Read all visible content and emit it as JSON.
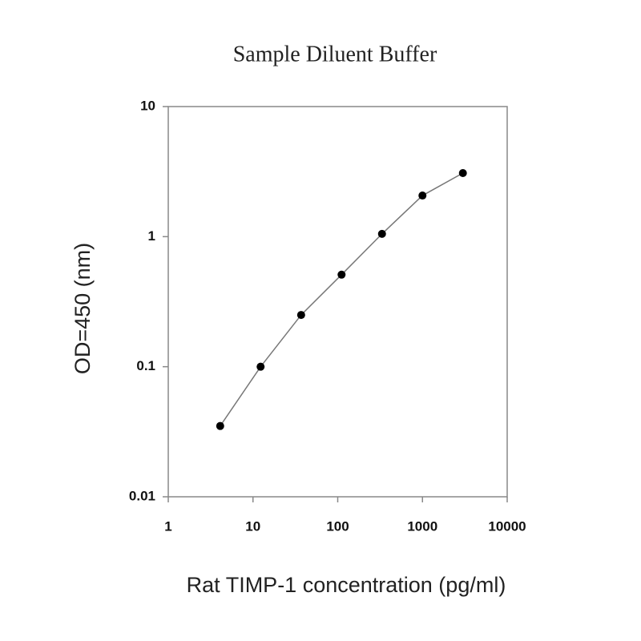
{
  "chart_data": {
    "type": "scatter",
    "title": "Sample Diluent Buffer",
    "x_label": "Rat TIMP-1 concentration (pg/ml)",
    "y_label": "OD=450 (nm)",
    "x": [
      4.1,
      12.3,
      37,
      111,
      333,
      1000,
      3000
    ],
    "values": [
      0.035,
      0.1,
      0.25,
      0.51,
      1.05,
      2.07,
      3.08
    ],
    "line": true,
    "line_color": "#777777",
    "marker_color": "#000000",
    "x_log": true,
    "y_log": true,
    "xlim": [
      1,
      10000
    ],
    "xticks": [
      1,
      10,
      100,
      1000,
      10000
    ],
    "ylim": [
      0.01,
      10
    ],
    "yticks": [
      0.01,
      0.1,
      1,
      10
    ],
    "grid": false
  }
}
